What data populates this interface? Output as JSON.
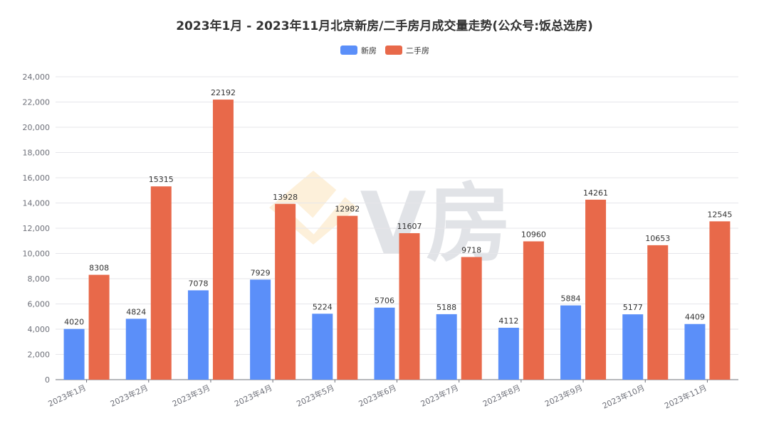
{
  "chart_data": {
    "type": "bar",
    "title": "2023年1月 - 2023年11月北京新房/二手房月成交量走势(公众号:饭总选房)",
    "categories": [
      "2023年1月",
      "2023年2月",
      "2023年3月",
      "2023年4月",
      "2023年5月",
      "2023年6月",
      "2023年7月",
      "2023年8月",
      "2023年9月",
      "2023年10月",
      "2023年11月"
    ],
    "series": [
      {
        "name": "新房",
        "color": "#5b8ff9",
        "values": [
          4020,
          4824,
          7078,
          7929,
          5224,
          5706,
          5188,
          4112,
          5884,
          5177,
          4409
        ]
      },
      {
        "name": "二手房",
        "color": "#e8694a",
        "values": [
          8308,
          15315,
          22192,
          13928,
          12982,
          11607,
          9718,
          10960,
          14261,
          10653,
          12545
        ]
      }
    ],
    "ylim": [
      0,
      24000
    ],
    "yticks": [
      "0",
      "2,000",
      "4,000",
      "6,000",
      "8,000",
      "10,000",
      "12,000",
      "14,000",
      "16,000",
      "18,000",
      "20,000",
      "22,000",
      "24,000"
    ],
    "grid": true,
    "legend": "top-center",
    "watermark": "V房"
  }
}
